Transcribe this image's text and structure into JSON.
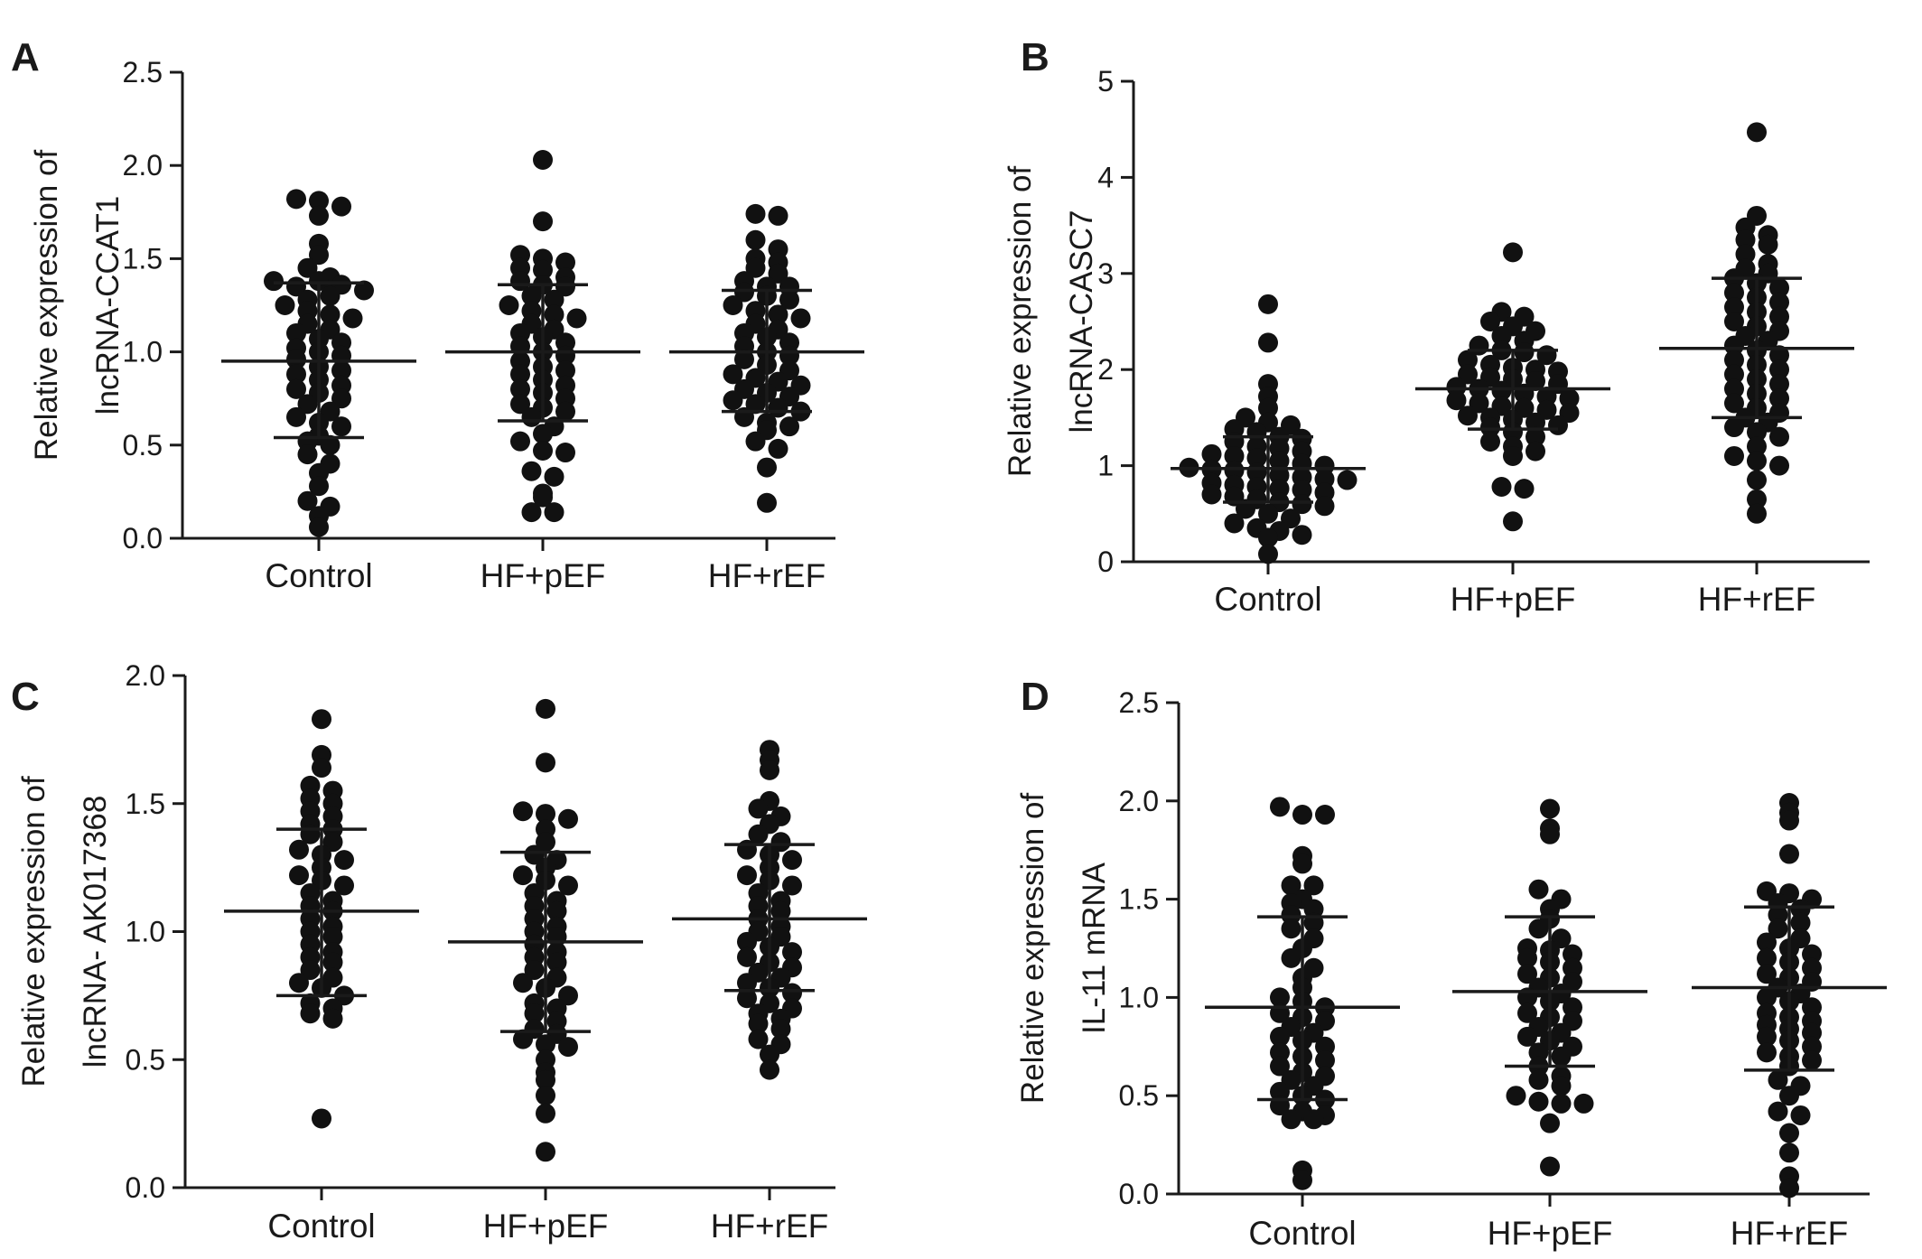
{
  "panels": [
    {
      "letter": "A",
      "ylabel_line1": "Relative expression of",
      "ylabel_line2": "lncRNA-CCAT1",
      "ylim": [
        0,
        2.5
      ],
      "yticks": [
        "0.0",
        "0.5",
        "1.0",
        "1.5",
        "2.0",
        "2.5"
      ],
      "categories": [
        "Control",
        "HF+pEF",
        "HF+rEF"
      ],
      "summary": [
        {
          "mean": 0.95,
          "lower": 0.54,
          "upper": 1.37
        },
        {
          "mean": 1.0,
          "lower": 0.63,
          "upper": 1.36
        },
        {
          "mean": 1.0,
          "lower": 0.68,
          "upper": 1.33
        }
      ],
      "points": [
        [
          1.82,
          1.81,
          1.78,
          1.73,
          1.58,
          1.52,
          1.45,
          1.4,
          1.38,
          1.35,
          1.38,
          1.36,
          1.33,
          1.28,
          1.3,
          1.25,
          1.22,
          1.2,
          1.18,
          1.15,
          1.12,
          1.1,
          1.07,
          1.05,
          1.02,
          1.0,
          0.98,
          0.96,
          0.92,
          0.9,
          0.88,
          0.85,
          0.82,
          0.8,
          0.78,
          0.75,
          0.72,
          0.68,
          0.65,
          0.62,
          0.6,
          0.55,
          0.52,
          0.5,
          0.45,
          0.4,
          0.35,
          0.28,
          0.2,
          0.17,
          0.12,
          0.06
        ],
        [
          2.03,
          1.7,
          1.52,
          1.5,
          1.48,
          1.45,
          1.44,
          1.4,
          1.38,
          1.36,
          1.35,
          1.3,
          1.28,
          1.25,
          1.22,
          1.2,
          1.18,
          1.15,
          1.12,
          1.1,
          1.08,
          1.05,
          1.03,
          1.0,
          0.98,
          0.95,
          0.92,
          0.9,
          0.88,
          0.85,
          0.82,
          0.8,
          0.78,
          0.75,
          0.72,
          0.7,
          0.68,
          0.65,
          0.6,
          0.56,
          0.52,
          0.47,
          0.46,
          0.36,
          0.33,
          0.24,
          0.22,
          0.14,
          0.14
        ],
        [
          1.74,
          1.73,
          1.6,
          1.55,
          1.5,
          1.48,
          1.45,
          1.42,
          1.38,
          1.35,
          1.35,
          1.32,
          1.3,
          1.28,
          1.25,
          1.22,
          1.2,
          1.18,
          1.15,
          1.12,
          1.1,
          1.08,
          1.05,
          1.03,
          1.0,
          0.98,
          0.96,
          0.93,
          0.9,
          0.88,
          0.86,
          0.84,
          0.82,
          0.8,
          0.78,
          0.76,
          0.74,
          0.72,
          0.7,
          0.68,
          0.65,
          0.62,
          0.6,
          0.58,
          0.52,
          0.48,
          0.38,
          0.19
        ]
      ]
    },
    {
      "letter": "B",
      "ylabel_line1": "Relative expression of",
      "ylabel_line2": "lncRNA-CASC7",
      "ylim": [
        0,
        5
      ],
      "yticks": [
        "0",
        "1",
        "2",
        "3",
        "4",
        "5"
      ],
      "categories": [
        "Control",
        "HF+pEF",
        "HF+rEF"
      ],
      "summary": [
        {
          "mean": 0.97,
          "lower": 0.62,
          "upper": 1.3
        },
        {
          "mean": 1.8,
          "lower": 1.38,
          "upper": 2.2
        },
        {
          "mean": 2.22,
          "lower": 1.5,
          "upper": 2.95
        }
      ],
      "points": [
        [
          2.68,
          2.28,
          1.85,
          1.72,
          1.6,
          1.5,
          1.45,
          1.42,
          1.38,
          1.35,
          1.3,
          1.28,
          1.25,
          1.2,
          1.18,
          1.15,
          1.12,
          1.1,
          1.08,
          1.05,
          1.02,
          1.0,
          0.98,
          0.96,
          0.95,
          0.93,
          0.9,
          0.88,
          0.86,
          0.85,
          0.82,
          0.8,
          0.78,
          0.76,
          0.75,
          0.72,
          0.7,
          0.68,
          0.65,
          0.62,
          0.6,
          0.58,
          0.55,
          0.5,
          0.45,
          0.4,
          0.35,
          0.32,
          0.28,
          0.25,
          0.08
        ],
        [
          3.22,
          2.6,
          2.55,
          2.5,
          2.45,
          2.4,
          2.35,
          2.3,
          2.25,
          2.2,
          2.18,
          2.15,
          2.1,
          2.05,
          2.02,
          2.0,
          1.98,
          1.95,
          1.92,
          1.9,
          1.88,
          1.85,
          1.82,
          1.8,
          1.78,
          1.75,
          1.72,
          1.7,
          1.68,
          1.65,
          1.62,
          1.6,
          1.58,
          1.55,
          1.52,
          1.5,
          1.48,
          1.45,
          1.42,
          1.4,
          1.35,
          1.3,
          1.25,
          1.2,
          1.15,
          1.1,
          0.78,
          0.76,
          0.42
        ],
        [
          4.47,
          3.6,
          3.48,
          3.4,
          3.35,
          3.3,
          3.2,
          3.1,
          3.05,
          3.0,
          2.95,
          2.9,
          2.85,
          2.8,
          2.75,
          2.7,
          2.65,
          2.6,
          2.55,
          2.5,
          2.45,
          2.4,
          2.35,
          2.3,
          2.25,
          2.2,
          2.15,
          2.1,
          2.05,
          2.0,
          1.95,
          1.9,
          1.85,
          1.8,
          1.75,
          1.7,
          1.65,
          1.6,
          1.55,
          1.5,
          1.45,
          1.4,
          1.35,
          1.3,
          1.2,
          1.1,
          1.05,
          1.0,
          0.85,
          0.65,
          0.5
        ]
      ]
    },
    {
      "letter": "C",
      "ylabel_line1": "Relative expression of",
      "ylabel_line2": "lncRNA- AK017368",
      "ylim": [
        0,
        2
      ],
      "yticks": [
        "0.0",
        "0.5",
        "1.0",
        "1.5",
        "2.0"
      ],
      "categories": [
        "Control",
        "HF+pEF",
        "HF+rEF"
      ],
      "summary": [
        {
          "mean": 1.08,
          "lower": 0.75,
          "upper": 1.4
        },
        {
          "mean": 0.96,
          "lower": 0.61,
          "upper": 1.31
        },
        {
          "mean": 1.05,
          "lower": 0.77,
          "upper": 1.34
        }
      ],
      "points": [
        [
          1.83,
          1.69,
          1.64,
          1.57,
          1.55,
          1.52,
          1.5,
          1.47,
          1.45,
          1.42,
          1.4,
          1.38,
          1.35,
          1.32,
          1.3,
          1.28,
          1.25,
          1.22,
          1.2,
          1.18,
          1.15,
          1.12,
          1.1,
          1.08,
          1.05,
          1.02,
          1.0,
          0.98,
          0.95,
          0.92,
          0.9,
          0.88,
          0.85,
          0.82,
          0.8,
          0.78,
          0.75,
          0.72,
          0.7,
          0.68,
          0.66,
          0.27
        ],
        [
          1.87,
          1.66,
          1.47,
          1.46,
          1.44,
          1.4,
          1.35,
          1.3,
          1.28,
          1.25,
          1.22,
          1.2,
          1.18,
          1.15,
          1.12,
          1.1,
          1.08,
          1.05,
          1.02,
          1.0,
          0.98,
          0.95,
          0.92,
          0.9,
          0.88,
          0.85,
          0.82,
          0.8,
          0.78,
          0.75,
          0.72,
          0.7,
          0.68,
          0.65,
          0.62,
          0.6,
          0.58,
          0.56,
          0.55,
          0.5,
          0.45,
          0.42,
          0.36,
          0.29,
          0.14
        ],
        [
          1.71,
          1.67,
          1.63,
          1.51,
          1.48,
          1.45,
          1.42,
          1.38,
          1.35,
          1.32,
          1.3,
          1.28,
          1.25,
          1.22,
          1.2,
          1.18,
          1.15,
          1.12,
          1.1,
          1.08,
          1.05,
          1.02,
          1.0,
          0.98,
          0.96,
          0.94,
          0.92,
          0.9,
          0.88,
          0.86,
          0.84,
          0.82,
          0.8,
          0.78,
          0.76,
          0.74,
          0.72,
          0.7,
          0.68,
          0.66,
          0.64,
          0.62,
          0.58,
          0.56,
          0.52,
          0.46
        ]
      ]
    },
    {
      "letter": "D",
      "ylabel_line1": "Relative expression of",
      "ylabel_line2": "IL-11 mRNA",
      "ylim": [
        0,
        2.5
      ],
      "yticks": [
        "0.0",
        "0.5",
        "1.0",
        "1.5",
        "2.0",
        "2.5"
      ],
      "categories": [
        "Control",
        "HF+pEF",
        "HF+rEF"
      ],
      "summary": [
        {
          "mean": 0.95,
          "lower": 0.48,
          "upper": 1.41
        },
        {
          "mean": 1.03,
          "lower": 0.65,
          "upper": 1.41
        },
        {
          "mean": 1.05,
          "lower": 0.63,
          "upper": 1.46
        }
      ],
      "points": [
        [
          1.97,
          1.93,
          1.93,
          1.72,
          1.68,
          1.57,
          1.57,
          1.5,
          1.48,
          1.45,
          1.42,
          1.38,
          1.35,
          1.3,
          1.25,
          1.2,
          1.15,
          1.1,
          1.05,
          1.0,
          0.98,
          0.95,
          0.92,
          0.9,
          0.88,
          0.85,
          0.82,
          0.8,
          0.78,
          0.75,
          0.72,
          0.7,
          0.68,
          0.65,
          0.62,
          0.6,
          0.58,
          0.55,
          0.52,
          0.5,
          0.48,
          0.45,
          0.42,
          0.4,
          0.38,
          0.38,
          0.12,
          0.07
        ],
        [
          1.96,
          1.86,
          1.83,
          1.55,
          1.5,
          1.45,
          1.4,
          1.35,
          1.3,
          1.25,
          1.24,
          1.22,
          1.2,
          1.18,
          1.15,
          1.12,
          1.1,
          1.08,
          1.05,
          1.02,
          1.0,
          0.98,
          0.95,
          0.92,
          0.9,
          0.88,
          0.85,
          0.82,
          0.8,
          0.78,
          0.75,
          0.72,
          0.7,
          0.65,
          0.6,
          0.58,
          0.55,
          0.5,
          0.47,
          0.46,
          0.46,
          0.36,
          0.14
        ],
        [
          1.99,
          1.94,
          1.9,
          1.73,
          1.54,
          1.53,
          1.5,
          1.48,
          1.45,
          1.42,
          1.38,
          1.35,
          1.3,
          1.28,
          1.25,
          1.22,
          1.2,
          1.18,
          1.15,
          1.12,
          1.1,
          1.08,
          1.05,
          1.02,
          1.0,
          0.98,
          0.95,
          0.92,
          0.9,
          0.88,
          0.86,
          0.84,
          0.82,
          0.8,
          0.78,
          0.75,
          0.72,
          0.7,
          0.68,
          0.65,
          0.58,
          0.55,
          0.5,
          0.42,
          0.4,
          0.31,
          0.21,
          0.09,
          0.03
        ]
      ]
    }
  ],
  "chart_data": [
    {
      "type": "scatter",
      "panel": "A",
      "categories": [
        "Control",
        "HF+pEF",
        "HF+rEF"
      ],
      "ylabel": "Relative expression of lncRNA-CCAT1",
      "ylim": [
        0,
        2.5
      ],
      "grid": false,
      "mean": [
        0.95,
        1.0,
        1.0
      ],
      "sd_lower": [
        0.54,
        0.63,
        0.68
      ],
      "sd_upper": [
        1.37,
        1.36,
        1.33
      ]
    },
    {
      "type": "scatter",
      "panel": "B",
      "categories": [
        "Control",
        "HF+pEF",
        "HF+rEF"
      ],
      "ylabel": "Relative expression of lncRNA-CASC7",
      "ylim": [
        0,
        5
      ],
      "grid": false,
      "mean": [
        0.97,
        1.8,
        2.22
      ],
      "sd_lower": [
        0.62,
        1.38,
        1.5
      ],
      "sd_upper": [
        1.3,
        2.2,
        2.95
      ]
    },
    {
      "type": "scatter",
      "panel": "C",
      "categories": [
        "Control",
        "HF+pEF",
        "HF+rEF"
      ],
      "ylabel": "Relative expression of lncRNA- AK017368",
      "ylim": [
        0,
        2
      ],
      "grid": false,
      "mean": [
        1.08,
        0.96,
        1.05
      ],
      "sd_lower": [
        0.75,
        0.61,
        0.77
      ],
      "sd_upper": [
        1.4,
        1.31,
        1.34
      ]
    },
    {
      "type": "scatter",
      "panel": "D",
      "categories": [
        "Control",
        "HF+pEF",
        "HF+rEF"
      ],
      "ylabel": "Relative expression of IL-11 mRNA",
      "ylim": [
        0,
        2.5
      ],
      "grid": false,
      "mean": [
        0.95,
        1.03,
        1.05
      ],
      "sd_lower": [
        0.48,
        0.65,
        0.63
      ],
      "sd_upper": [
        1.41,
        1.41,
        1.46
      ]
    }
  ]
}
